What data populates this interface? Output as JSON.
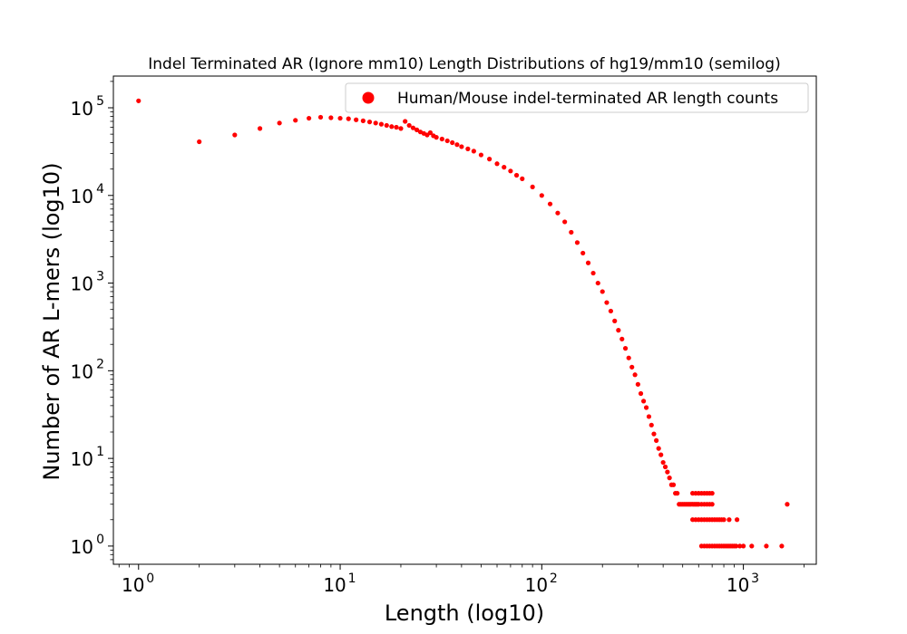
{
  "chart_data": {
    "type": "scatter",
    "title": "Indel Terminated AR (Ignore mm10) Length Distributions of hg19/mm10 (semilog)",
    "xlabel": "Length (log10)",
    "ylabel": "Number of AR L-mers (log10)",
    "x_scale": "log10",
    "y_scale": "log10",
    "xlim": [
      0.75,
      2300
    ],
    "ylim": [
      0.62,
      230000
    ],
    "x_ticks": [
      {
        "value": 1,
        "label": "10",
        "exp": "0"
      },
      {
        "value": 10,
        "label": "10",
        "exp": "1"
      },
      {
        "value": 100,
        "label": "10",
        "exp": "2"
      },
      {
        "value": 1000,
        "label": "10",
        "exp": "3"
      }
    ],
    "y_ticks": [
      {
        "value": 1,
        "label": "10",
        "exp": "0"
      },
      {
        "value": 10,
        "label": "10",
        "exp": "1"
      },
      {
        "value": 100,
        "label": "10",
        "exp": "2"
      },
      {
        "value": 1000,
        "label": "10",
        "exp": "3"
      },
      {
        "value": 10000,
        "label": "10",
        "exp": "4"
      },
      {
        "value": 100000,
        "label": "10",
        "exp": "5"
      }
    ],
    "grid": false,
    "legend_position": "top-right",
    "series": [
      {
        "name": "Human/Mouse indel-terminated AR length counts",
        "color": "#ff0000",
        "x": [
          1,
          2,
          3,
          4,
          5,
          6,
          7,
          8,
          9,
          10,
          11,
          12,
          13,
          14,
          15,
          16,
          17,
          18,
          19,
          20,
          21,
          22,
          23,
          24,
          25,
          26,
          27,
          28,
          29,
          30,
          32,
          34,
          36,
          38,
          40,
          43,
          46,
          50,
          55,
          60,
          65,
          70,
          75,
          80,
          90,
          100,
          110,
          120,
          130,
          140,
          150,
          160,
          170,
          180,
          190,
          200,
          210,
          220,
          230,
          240,
          250,
          260,
          270,
          280,
          290,
          300,
          310,
          320,
          330,
          340,
          350,
          360,
          370,
          380,
          390,
          400,
          410,
          420,
          430,
          440,
          450,
          460,
          470,
          480,
          490,
          500,
          510,
          520,
          530,
          540,
          550,
          560,
          570,
          580,
          590,
          600,
          620,
          640,
          660,
          680,
          700,
          560,
          580,
          600,
          620,
          640,
          660,
          680,
          700,
          560,
          580,
          600,
          620,
          640,
          660,
          680,
          700,
          720,
          740,
          760,
          780,
          800,
          850,
          930,
          620,
          640,
          660,
          680,
          700,
          720,
          740,
          760,
          780,
          800,
          820,
          840,
          860,
          880,
          900,
          920,
          960,
          1000,
          1100,
          1300,
          1550,
          1650
        ],
        "y": [
          120000,
          41000,
          49000,
          58000,
          67000,
          72000,
          76000,
          78000,
          77000,
          76000,
          75000,
          73000,
          71000,
          69000,
          67000,
          65000,
          63000,
          61000,
          60000,
          58000,
          70000,
          63000,
          59000,
          56000,
          53000,
          51000,
          49000,
          52000,
          48000,
          46000,
          44000,
          42000,
          40000,
          38000,
          36000,
          34000,
          32000,
          29000,
          26000,
          23000,
          21000,
          19000,
          17000,
          15500,
          12500,
          10000,
          8000,
          6300,
          5000,
          3800,
          2900,
          2200,
          1700,
          1300,
          1000,
          800,
          600,
          480,
          370,
          290,
          230,
          180,
          140,
          110,
          90,
          70,
          55,
          45,
          38,
          30,
          24,
          19,
          16,
          13,
          11,
          9,
          8,
          7,
          6,
          5,
          5,
          4,
          4,
          3,
          3,
          3,
          3,
          3,
          3,
          3,
          3,
          3,
          3,
          3,
          3,
          3,
          3,
          3,
          3,
          3,
          3,
          4,
          4,
          4,
          4,
          4,
          4,
          4,
          4,
          2,
          2,
          2,
          2,
          2,
          2,
          2,
          2,
          2,
          2,
          2,
          2,
          2,
          2,
          2,
          1,
          1,
          1,
          1,
          1,
          1,
          1,
          1,
          1,
          1,
          1,
          1,
          1,
          1,
          1,
          1,
          1,
          1,
          1,
          1,
          1,
          3
        ]
      }
    ]
  }
}
